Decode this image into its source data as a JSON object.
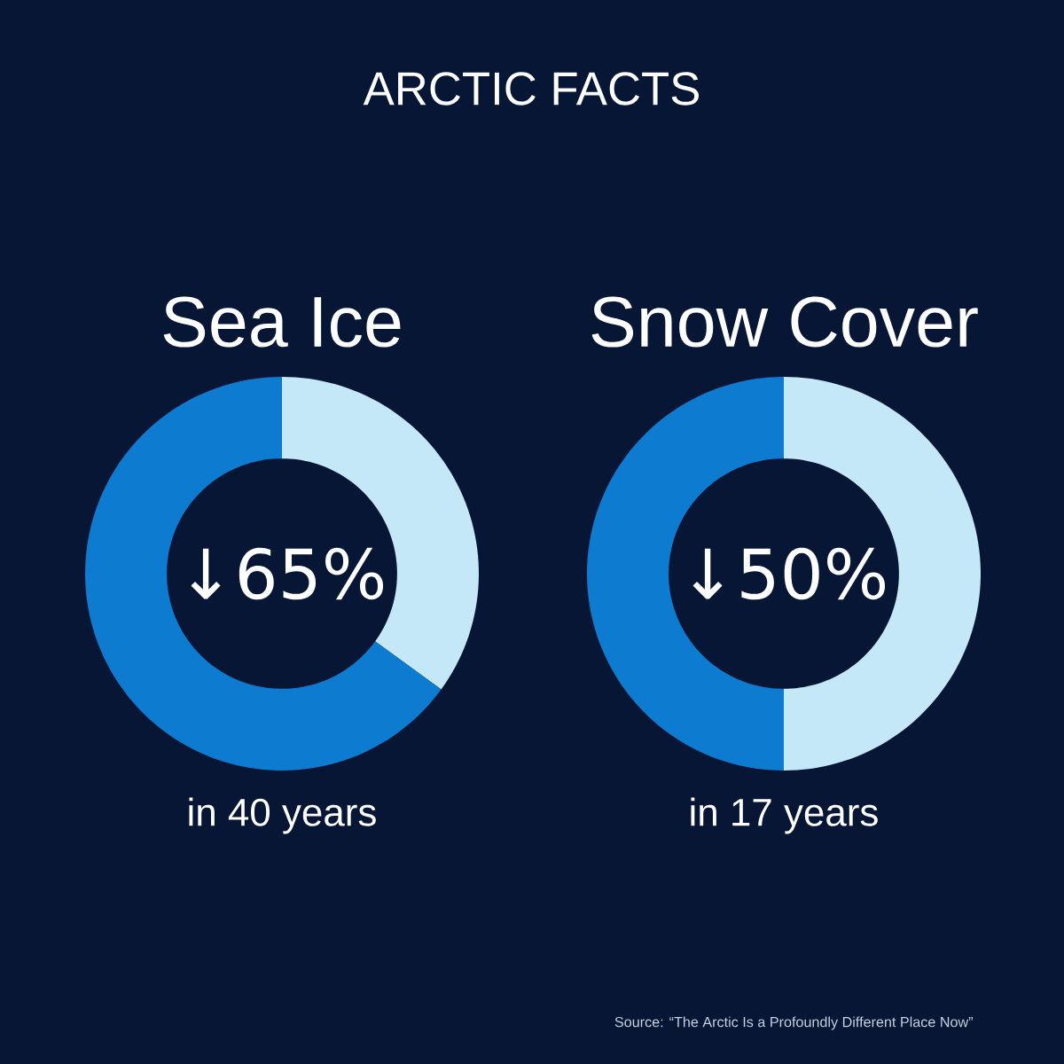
{
  "chart_data": [
    {
      "type": "other",
      "title": "ARCTIC FACTS",
      "annotations": [
        "Source: “The Arctic Is a Profoundly Different Place Now”"
      ]
    },
    {
      "type": "donut",
      "title": "Sea Ice",
      "categories": [
        null,
        null
      ],
      "values": [
        35,
        65
      ],
      "colors": [
        "#c4e8f8",
        "#0d7bcf"
      ],
      "annotations": [
        "↓65%",
        "in 40 years"
      ]
    },
    {
      "type": "donut",
      "title": "Snow Cover",
      "categories": [
        null,
        null
      ],
      "values": [
        50,
        50
      ],
      "colors": [
        "#c4e8f8",
        "#0d7bcf"
      ],
      "annotations": [
        "↓50%",
        "in 17 years"
      ]
    }
  ]
}
